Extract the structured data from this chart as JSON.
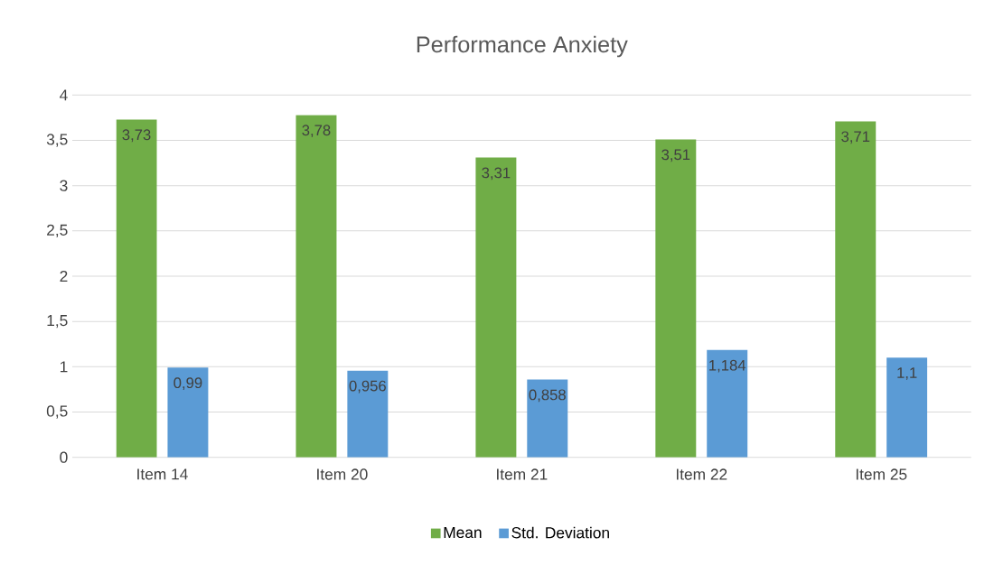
{
  "chart_data": {
    "type": "bar",
    "title": "Performance Anxiety",
    "categories": [
      "Item 14",
      "Item 20",
      "Item 21",
      "Item 22",
      "Item 25"
    ],
    "series": [
      {
        "name": "Mean",
        "color": "#70ad47",
        "values": [
          3.73,
          3.78,
          3.31,
          3.51,
          3.71
        ],
        "value_labels": [
          "3,73",
          "3,78",
          "3,31",
          "3,51",
          "3,71"
        ]
      },
      {
        "name": "Std. Deviation",
        "color": "#5b9bd5",
        "values": [
          0.99,
          0.956,
          0.858,
          1.184,
          1.1
        ],
        "value_labels": [
          "0,99",
          "0,956",
          "0,858",
          "1,184",
          "1,1"
        ]
      }
    ],
    "ylim": [
      0,
      4
    ],
    "yticks": [
      0,
      {
        "value": 0.5,
        "label": "0,5"
      },
      1,
      {
        "value": 1.5,
        "label": "1,5"
      },
      2,
      {
        "value": 2.5,
        "label": "2,5"
      },
      3,
      {
        "value": 3.5,
        "label": "3,5"
      },
      4
    ],
    "grid": "y",
    "legend": "bottom"
  }
}
